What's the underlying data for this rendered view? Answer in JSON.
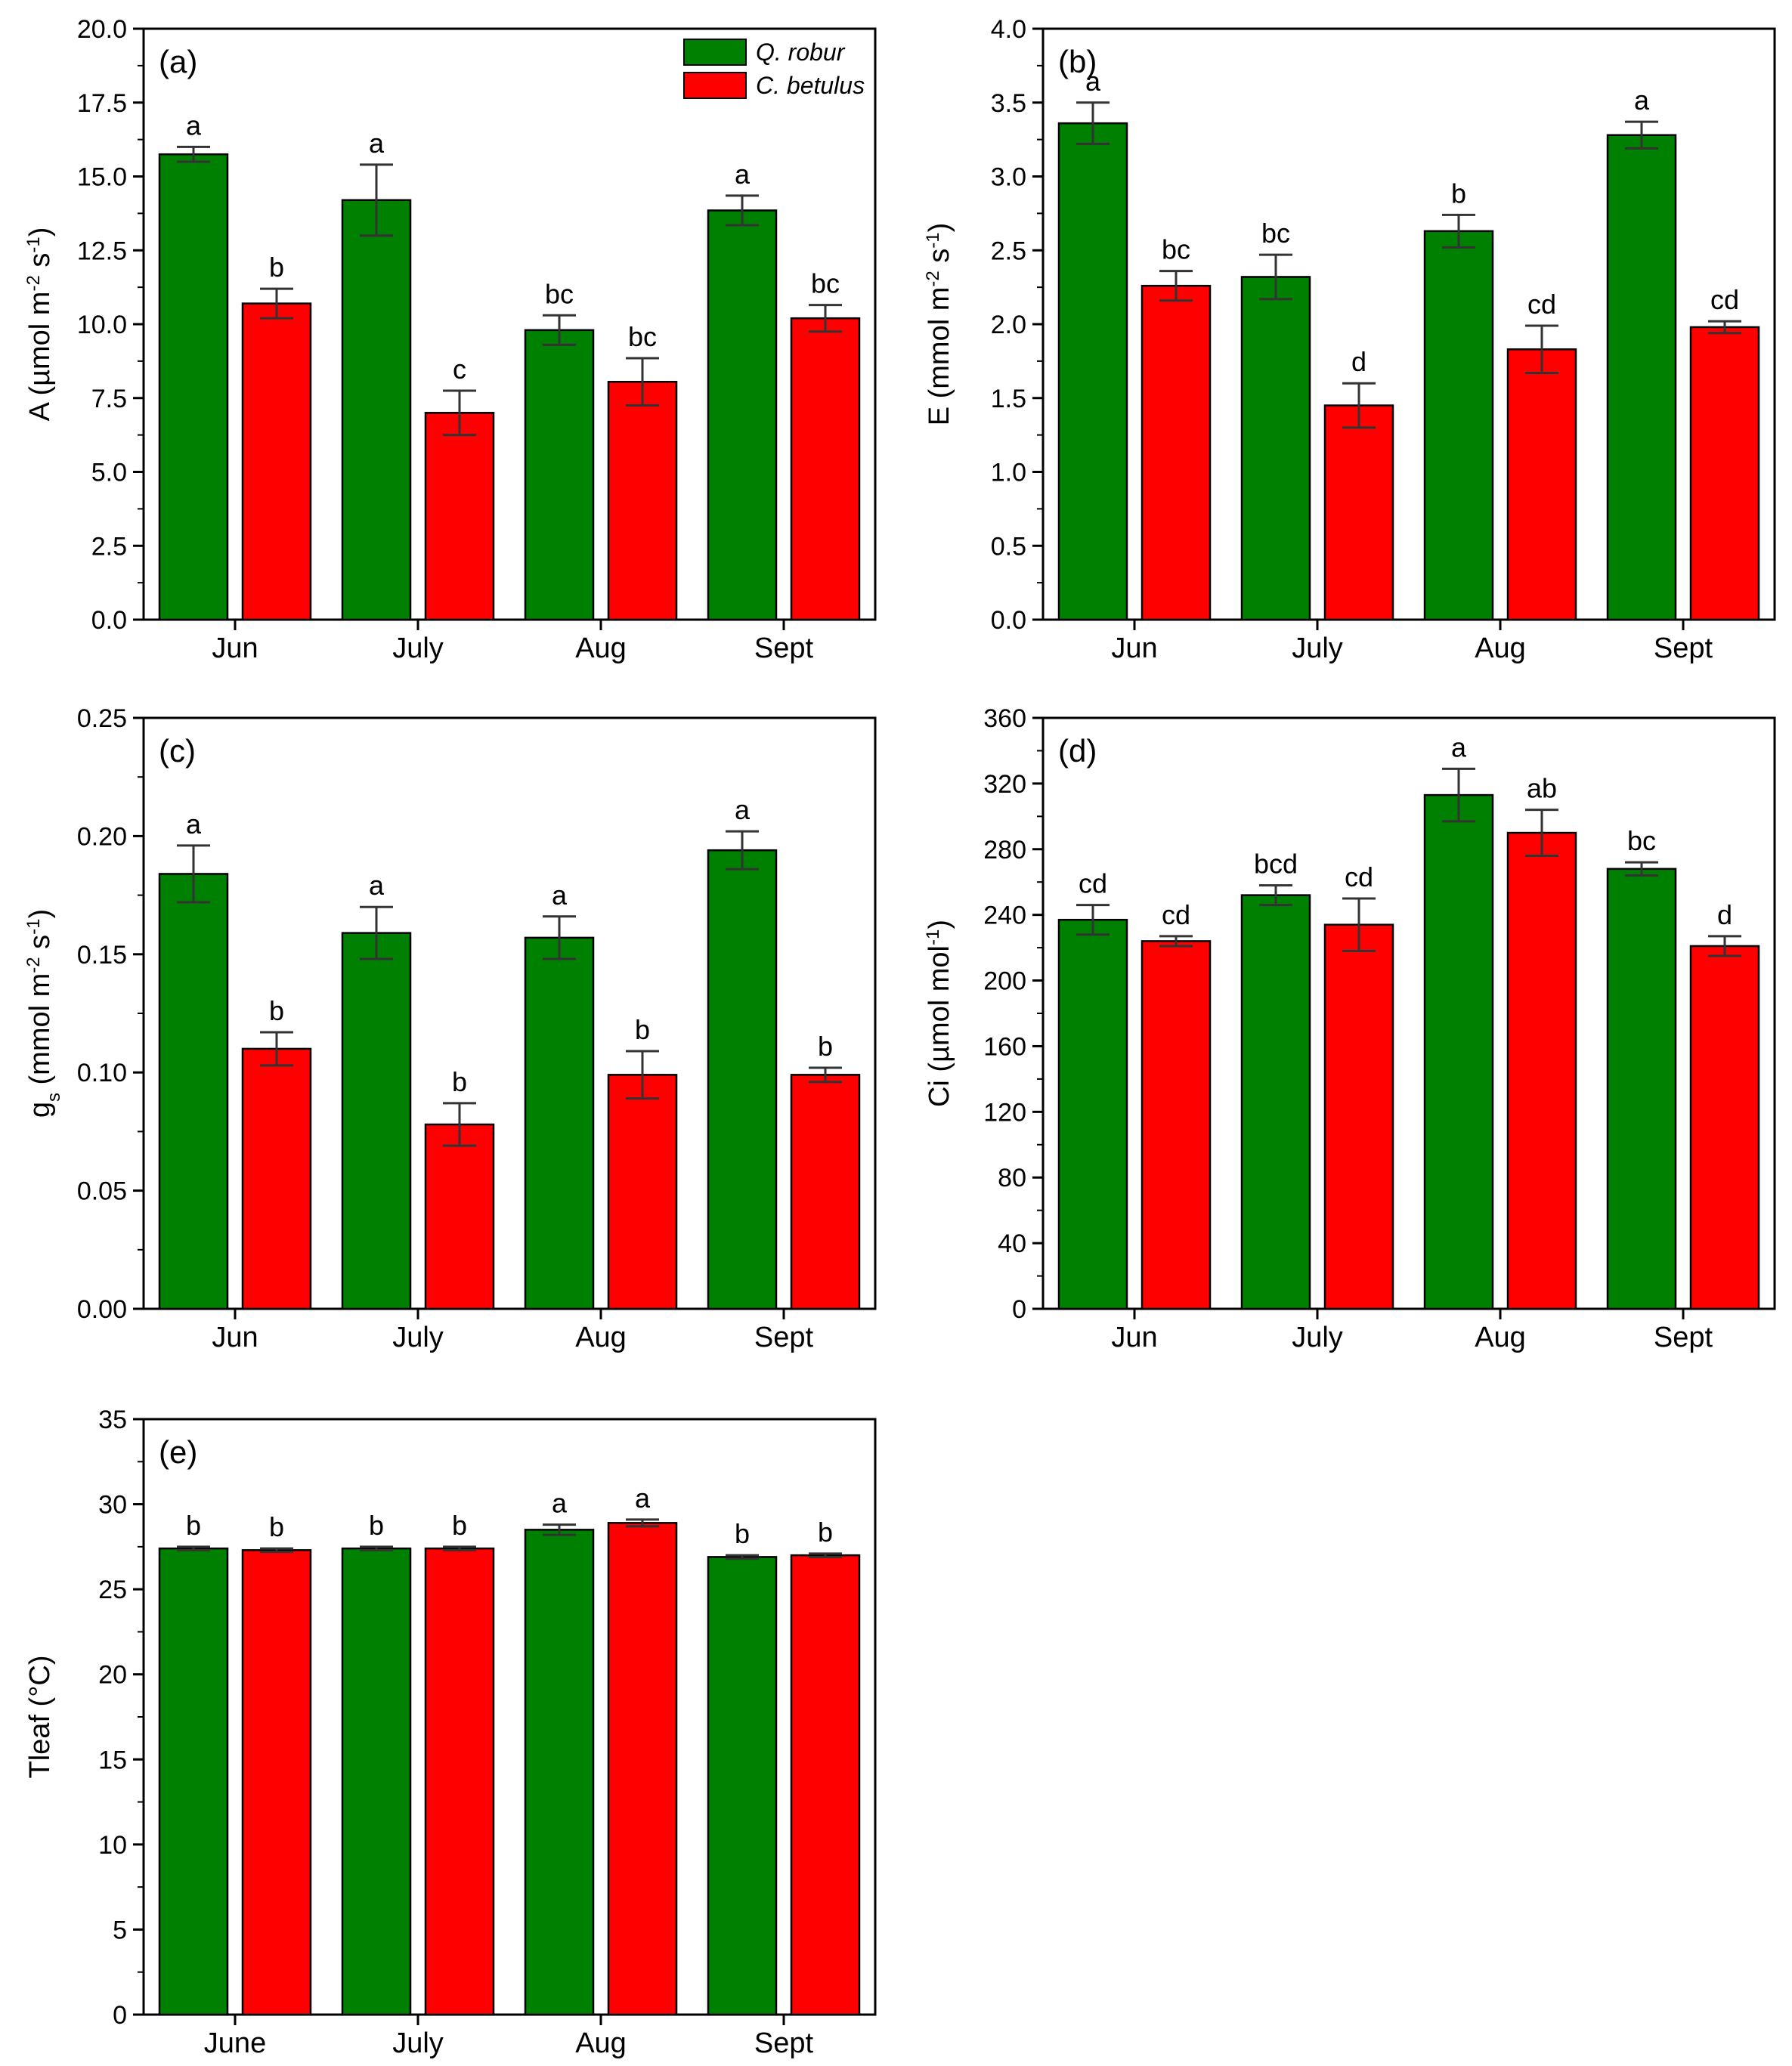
{
  "legend": {
    "entries": [
      {
        "name": "Q. robur",
        "color": "#008000"
      },
      {
        "name": "C. betulus",
        "color": "#ff0000"
      }
    ]
  },
  "chart_data": [
    {
      "type": "bar",
      "panel_label": "(a)",
      "ylabel_html": "A (µmol m<tspan baseline-shift='super' font-size='24'>-2</tspan> s<tspan baseline-shift='super' font-size='24'>-1</tspan>)",
      "ylabel_text": "A (µmol m-2 s-1)",
      "categories": [
        "Jun",
        "July",
        "Aug",
        "Sept"
      ],
      "ylim": [
        0,
        20
      ],
      "yticks": [
        "0.0",
        "2.5",
        "5.0",
        "7.5",
        "10.0",
        "12.5",
        "15.0",
        "17.5",
        "20.0"
      ],
      "ytick_values": [
        0,
        2.5,
        5,
        7.5,
        10,
        12.5,
        15,
        17.5,
        20
      ],
      "minor_step": 1.25,
      "series": [
        {
          "name": "Q. robur",
          "color": "#008000",
          "values": [
            15.75,
            14.2,
            9.8,
            13.85
          ],
          "errors": [
            0.25,
            1.2,
            0.5,
            0.5
          ],
          "letters": [
            "a",
            "a",
            "bc",
            "a"
          ]
        },
        {
          "name": "C. betulus",
          "color": "#ff0000",
          "values": [
            10.7,
            7.0,
            8.05,
            10.2
          ],
          "errors": [
            0.5,
            0.75,
            0.8,
            0.45
          ],
          "letters": [
            "b",
            "c",
            "bc",
            "bc"
          ]
        }
      ],
      "show_legend": true
    },
    {
      "type": "bar",
      "panel_label": "(b)",
      "ylabel_text": "E (mmol m-2 s-1)",
      "categories": [
        "Jun",
        "July",
        "Aug",
        "Sept"
      ],
      "ylim": [
        0,
        4
      ],
      "yticks": [
        "0.0",
        "0.5",
        "1.0",
        "1.5",
        "2.0",
        "2.5",
        "3.0",
        "3.5",
        "4.0"
      ],
      "ytick_values": [
        0,
        0.5,
        1,
        1.5,
        2,
        2.5,
        3,
        3.5,
        4
      ],
      "minor_step": 0.25,
      "series": [
        {
          "name": "Q. robur",
          "color": "#008000",
          "values": [
            3.36,
            2.32,
            2.63,
            3.28
          ],
          "errors": [
            0.14,
            0.15,
            0.11,
            0.09
          ],
          "letters": [
            "a",
            "bc",
            "b",
            "a"
          ]
        },
        {
          "name": "C. betulus",
          "color": "#ff0000",
          "values": [
            2.26,
            1.45,
            1.83,
            1.98
          ],
          "errors": [
            0.1,
            0.15,
            0.16,
            0.04
          ],
          "letters": [
            "bc",
            "d",
            "cd",
            "cd"
          ]
        }
      ],
      "show_legend": false
    },
    {
      "type": "bar",
      "panel_label": "(c)",
      "ylabel_text": "gs (mmol m-2 s-1)",
      "categories": [
        "Jun",
        "July",
        "Aug",
        "Sept"
      ],
      "ylim": [
        0,
        0.25
      ],
      "yticks": [
        "0.00",
        "0.05",
        "0.10",
        "0.15",
        "0.20",
        "0.25"
      ],
      "ytick_values": [
        0,
        0.05,
        0.1,
        0.15,
        0.2,
        0.25
      ],
      "minor_step": 0.025,
      "series": [
        {
          "name": "Q. robur",
          "color": "#008000",
          "values": [
            0.184,
            0.159,
            0.157,
            0.194
          ],
          "errors": [
            0.012,
            0.011,
            0.009,
            0.008
          ],
          "letters": [
            "a",
            "a",
            "a",
            "a"
          ]
        },
        {
          "name": "C. betulus",
          "color": "#ff0000",
          "values": [
            0.11,
            0.078,
            0.099,
            0.099
          ],
          "errors": [
            0.007,
            0.009,
            0.01,
            0.003
          ],
          "letters": [
            "b",
            "b",
            "b",
            "b"
          ]
        }
      ],
      "show_legend": false
    },
    {
      "type": "bar",
      "panel_label": "(d)",
      "ylabel_text": "Ci (µmol mol-1)",
      "categories": [
        "Jun",
        "July",
        "Aug",
        "Sept"
      ],
      "ylim": [
        0,
        360
      ],
      "yticks": [
        "0",
        "40",
        "80",
        "120",
        "160",
        "200",
        "240",
        "280",
        "320",
        "360"
      ],
      "ytick_values": [
        0,
        40,
        80,
        120,
        160,
        200,
        240,
        280,
        320,
        360
      ],
      "minor_step": 20,
      "series": [
        {
          "name": "Q. robur",
          "color": "#008000",
          "values": [
            237,
            252,
            313,
            268
          ],
          "errors": [
            9,
            6,
            16,
            4
          ],
          "letters": [
            "cd",
            "bcd",
            "a",
            "bc"
          ]
        },
        {
          "name": "C. betulus",
          "color": "#ff0000",
          "values": [
            224,
            234,
            290,
            221
          ],
          "errors": [
            3,
            16,
            14,
            6
          ],
          "letters": [
            "cd",
            "cd",
            "ab",
            "d"
          ]
        }
      ],
      "show_legend": false
    },
    {
      "type": "bar",
      "panel_label": "(e)",
      "ylabel_text": "Tleaf (°C)",
      "categories": [
        "June",
        "July",
        "Aug",
        "Sept"
      ],
      "ylim": [
        0,
        35
      ],
      "yticks": [
        "0",
        "5",
        "10",
        "15",
        "20",
        "25",
        "30",
        "35"
      ],
      "ytick_values": [
        0,
        5,
        10,
        15,
        20,
        25,
        30,
        35
      ],
      "minor_step": 2.5,
      "series": [
        {
          "name": "Q. robur",
          "color": "#008000",
          "values": [
            27.4,
            27.4,
            28.5,
            26.9
          ],
          "errors": [
            0.1,
            0.1,
            0.3,
            0.1
          ],
          "letters": [
            "b",
            "b",
            "a",
            "b"
          ]
        },
        {
          "name": "C. betulus",
          "color": "#ff0000",
          "values": [
            27.3,
            27.4,
            28.9,
            27.0
          ],
          "errors": [
            0.1,
            0.1,
            0.2,
            0.1
          ],
          "letters": [
            "b",
            "b",
            "a",
            "b"
          ]
        }
      ],
      "show_legend": false
    }
  ]
}
